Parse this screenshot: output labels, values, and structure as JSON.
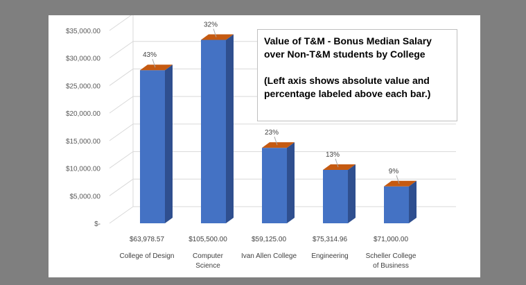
{
  "chart_data": {
    "type": "bar",
    "categories": [
      "College of Design",
      "Computer Science",
      "Ivan Allen College",
      "Engineering",
      "Scheller College of Business"
    ],
    "category_lines": [
      [
        "College of Design"
      ],
      [
        "Computer",
        "Science"
      ],
      [
        "Ivan Allen College"
      ],
      [
        "Engineering"
      ],
      [
        "Scheller College",
        "of Business"
      ]
    ],
    "values": [
      27800,
      33300,
      13700,
      9700,
      6700
    ],
    "median_salaries": [
      "$63,978.57",
      "$105,500.00",
      "$59,125.00",
      "$75,314.96",
      "$71,000.00"
    ],
    "percent_labels": [
      "43%",
      "32%",
      "23%",
      "13%",
      "9%"
    ],
    "ylim": [
      0,
      35000
    ],
    "yticks": [
      0,
      5000,
      10000,
      15000,
      20000,
      25000,
      30000,
      35000
    ],
    "ytick_labels": [
      "$-",
      "$5,000.00",
      "$10,000.00",
      "$15,000.00",
      "$20,000.00",
      "$25,000.00",
      "$30,000.00",
      "$35,000.00"
    ],
    "grid": true,
    "three_d": true,
    "colors": {
      "bar_front": "#4472c4",
      "bar_side": "#2f4f8f",
      "bar_top": "#c55a11",
      "grid": "#d9d9d9",
      "frame": "#7f7f7f"
    }
  },
  "callout": {
    "lines": [
      "Value of T&M - Bonus Median Salary",
      "over Non-T&M students by College",
      "",
      "(Left axis shows absolute value and",
      "percentage labeled above each bar.)"
    ]
  }
}
